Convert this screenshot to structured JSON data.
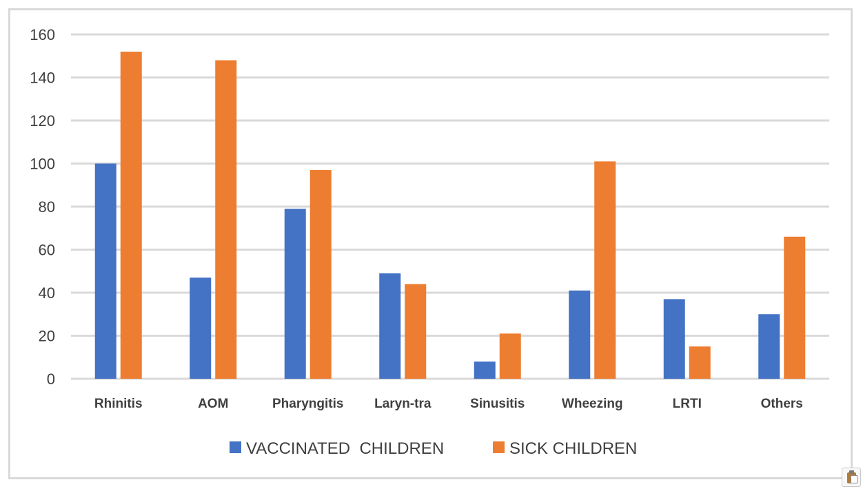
{
  "chart_data": {
    "type": "bar",
    "title": "",
    "xlabel": "",
    "ylabel": "",
    "categories": [
      "Rhinitis",
      "AOM",
      "Pharyngitis",
      "Laryn-tra",
      "Sinusitis",
      "Wheezing",
      "LRTI",
      "Others"
    ],
    "series": [
      {
        "name": "VACCINATED  CHILDREN",
        "color": "#4472c4",
        "values": [
          100,
          47,
          79,
          49,
          8,
          41,
          37,
          30
        ]
      },
      {
        "name": "SICK CHILDREN",
        "color": "#ed7d31",
        "values": [
          152,
          148,
          97,
          44,
          21,
          101,
          15,
          66
        ]
      }
    ],
    "ylim": [
      0,
      160
    ],
    "yticks": [
      "0",
      "20",
      "40",
      "60",
      "80",
      "100",
      "120",
      "140",
      "160"
    ],
    "grid": true,
    "legend_position": "bottom"
  },
  "ui": {
    "paste_icon": "paste-options-icon"
  }
}
